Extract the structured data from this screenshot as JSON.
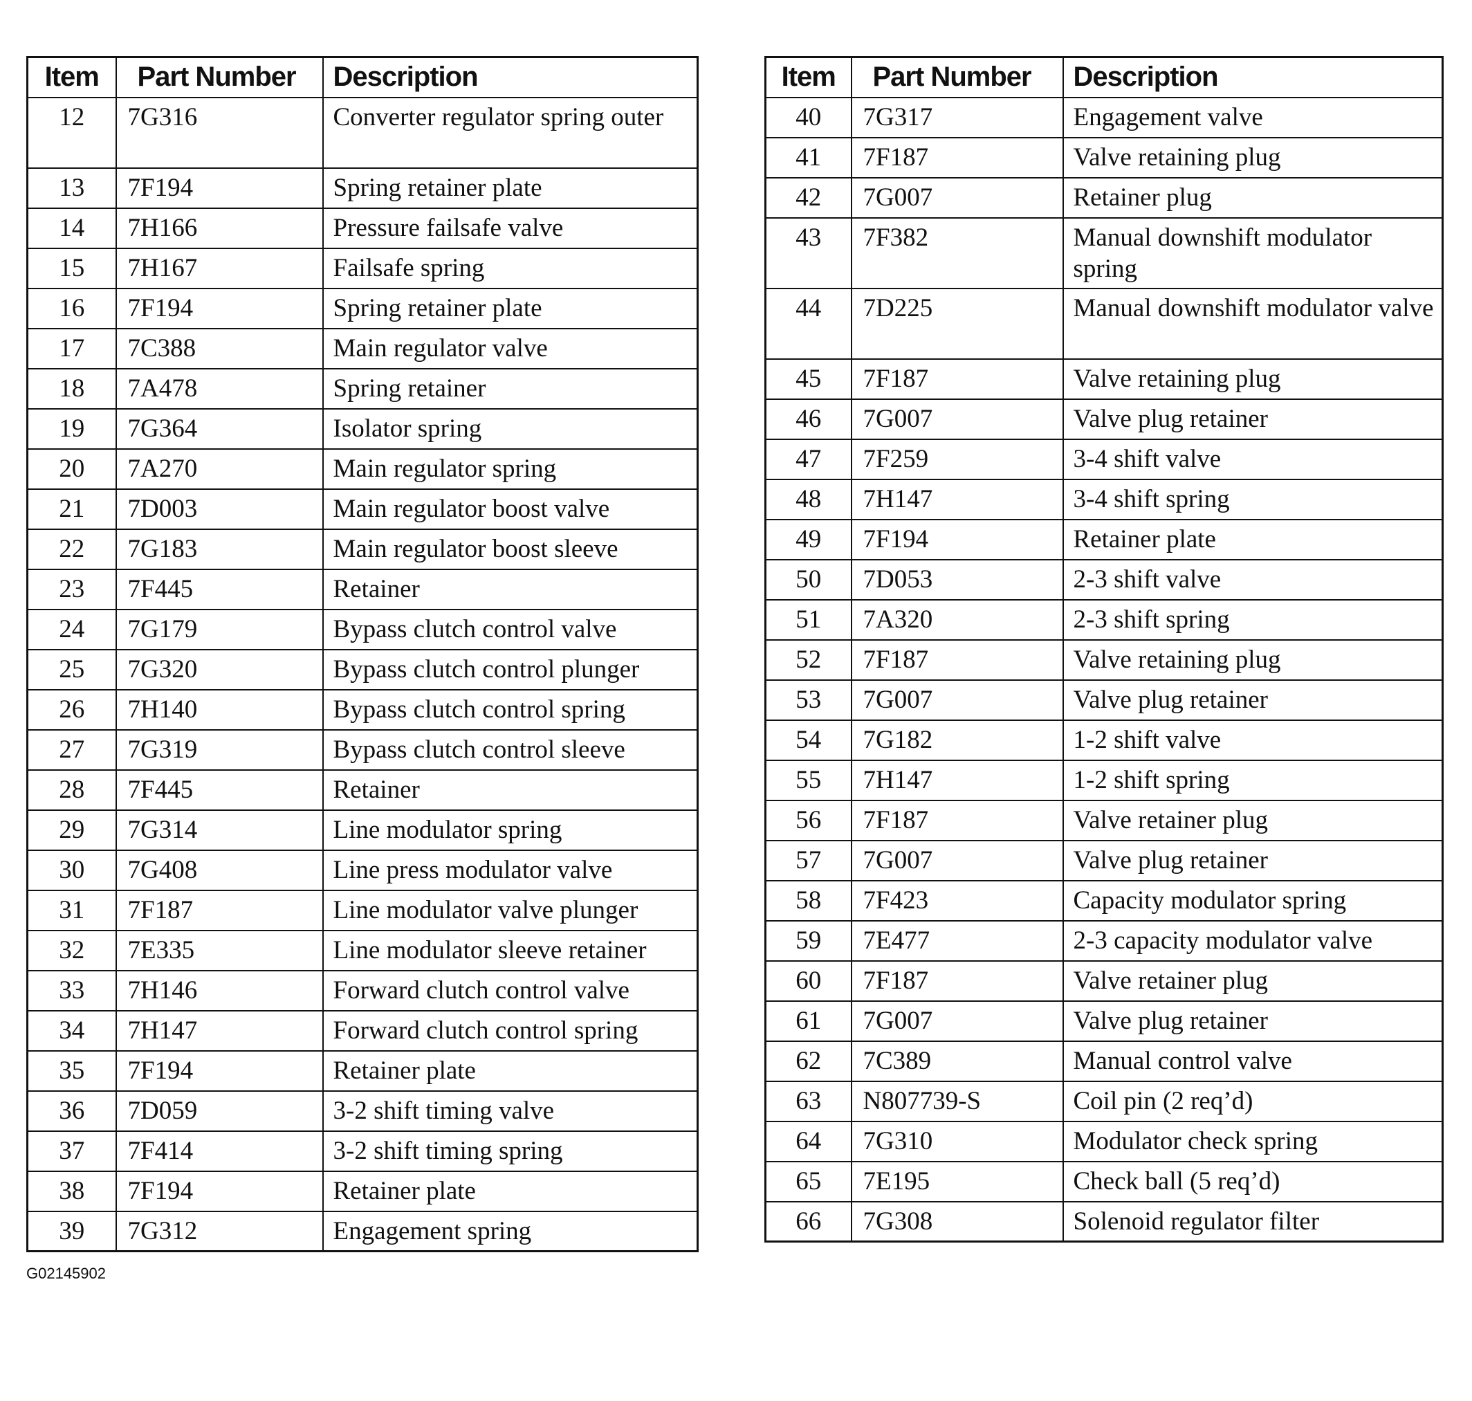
{
  "headers": {
    "item": "Item",
    "part": "Part Number",
    "desc": "Description"
  },
  "left_rows": [
    [
      "12",
      "7G316",
      "Converter regulator spring outer"
    ],
    [
      "13",
      "7F194",
      "Spring retainer plate"
    ],
    [
      "14",
      "7H166",
      "Pressure failsafe valve"
    ],
    [
      "15",
      "7H167",
      "Failsafe spring"
    ],
    [
      "16",
      "7F194",
      "Spring retainer plate"
    ],
    [
      "17",
      "7C388",
      "Main regulator valve"
    ],
    [
      "18",
      "7A478",
      "Spring retainer"
    ],
    [
      "19",
      "7G364",
      "Isolator spring"
    ],
    [
      "20",
      "7A270",
      "Main regulator spring"
    ],
    [
      "21",
      "7D003",
      "Main regulator boost valve"
    ],
    [
      "22",
      "7G183",
      "Main regulator boost sleeve"
    ],
    [
      "23",
      "7F445",
      "Retainer"
    ],
    [
      "24",
      "7G179",
      "Bypass clutch control valve"
    ],
    [
      "25",
      "7G320",
      "Bypass clutch control plunger"
    ],
    [
      "26",
      "7H140",
      "Bypass clutch control spring"
    ],
    [
      "27",
      "7G319",
      "Bypass clutch control sleeve"
    ],
    [
      "28",
      "7F445",
      "Retainer"
    ],
    [
      "29",
      "7G314",
      "Line modulator spring"
    ],
    [
      "30",
      "7G408",
      "Line press modulator valve"
    ],
    [
      "31",
      "7F187",
      "Line modulator valve plunger"
    ],
    [
      "32",
      "7E335",
      "Line modulator sleeve retainer"
    ],
    [
      "33",
      "7H146",
      "Forward clutch control valve"
    ],
    [
      "34",
      "7H147",
      "Forward clutch control spring"
    ],
    [
      "35",
      "7F194",
      "Retainer plate"
    ],
    [
      "36",
      "7D059",
      "3-2 shift timing valve"
    ],
    [
      "37",
      "7F414",
      "3-2 shift timing spring"
    ],
    [
      "38",
      "7F194",
      "Retainer plate"
    ],
    [
      "39",
      "7G312",
      "Engagement spring"
    ]
  ],
  "right_rows": [
    [
      "40",
      "7G317",
      "Engagement valve"
    ],
    [
      "41",
      "7F187",
      "Valve retaining plug"
    ],
    [
      "42",
      "7G007",
      "Retainer plug"
    ],
    [
      "43",
      "7F382",
      "Manual downshift modulator spring"
    ],
    [
      "44",
      "7D225",
      "Manual downshift modulator valve"
    ],
    [
      "45",
      "7F187",
      "Valve retaining plug"
    ],
    [
      "46",
      "7G007",
      "Valve plug retainer"
    ],
    [
      "47",
      "7F259",
      "3-4 shift valve"
    ],
    [
      "48",
      "7H147",
      "3-4 shift spring"
    ],
    [
      "49",
      "7F194",
      "Retainer plate"
    ],
    [
      "50",
      "7D053",
      "2-3 shift valve"
    ],
    [
      "51",
      "7A320",
      "2-3 shift spring"
    ],
    [
      "52",
      "7F187",
      "Valve retaining plug"
    ],
    [
      "53",
      "7G007",
      "Valve plug retainer"
    ],
    [
      "54",
      "7G182",
      "1-2 shift valve"
    ],
    [
      "55",
      "7H147",
      "1-2 shift spring"
    ],
    [
      "56",
      "7F187",
      "Valve retainer plug"
    ],
    [
      "57",
      "7G007",
      "Valve plug retainer"
    ],
    [
      "58",
      "7F423",
      "Capacity modulator spring"
    ],
    [
      "59",
      "7E477",
      "2-3 capacity modulator valve"
    ],
    [
      "60",
      "7F187",
      "Valve retainer plug"
    ],
    [
      "61",
      "7G007",
      "Valve plug retainer"
    ],
    [
      "62",
      "7C389",
      "Manual control valve"
    ],
    [
      "63",
      "N807739-S",
      "Coil pin (2 req’d)"
    ],
    [
      "64",
      "7G310",
      "Modulator check spring"
    ],
    [
      "65",
      "7E195",
      "Check ball (5 req’d)"
    ],
    [
      "66",
      "7G308",
      "Solenoid regulator filter"
    ]
  ],
  "footer": "G02145902"
}
